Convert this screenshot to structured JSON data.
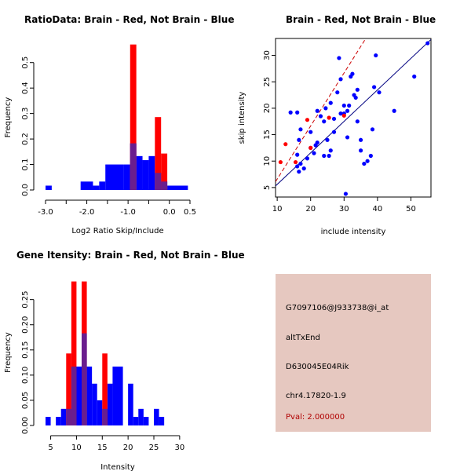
{
  "colors": {
    "red": "#ff0000",
    "blue": "#0000ff",
    "overlap": "#6a1e8e",
    "info_bg": "#e6c8c0",
    "pval_text": "#b00000",
    "red_fit": "#cc0000",
    "blue_fit": "#000080"
  },
  "chart_data": [
    {
      "type": "histogram",
      "title": "RatioData: Brain - Red, Not Brain - Blue",
      "xlabel": "Log2 Ratio Skip/Include",
      "ylabel": "Frequency",
      "xlim": [
        -3.0,
        0.5
      ],
      "ylim": [
        0,
        0.57
      ],
      "xticks": [
        -3.0,
        -2.5,
        -2.0,
        -1.5,
        -1.0,
        -0.5,
        0.0,
        0.5
      ],
      "xtick_labels": [
        "-3.0",
        "",
        "-2.0",
        "",
        "-1.0",
        "",
        "0.0",
        "0.5"
      ],
      "yticks": [
        0.0,
        0.1,
        0.2,
        0.3,
        0.4,
        0.5
      ],
      "ytick_labels": [
        "0.0",
        "0.1",
        "0.2",
        "0.3",
        "0.4",
        "0.5"
      ],
      "series": [
        {
          "name": "Not Brain",
          "color": "blue",
          "bins": [
            {
              "x0": -3.0,
              "x1": -2.85,
              "y": 0.017
            },
            {
              "x0": -2.15,
              "x1": -1.85,
              "y": 0.033
            },
            {
              "x0": -1.85,
              "x1": -1.7,
              "y": 0.017
            },
            {
              "x0": -1.7,
              "x1": -1.55,
              "y": 0.033
            },
            {
              "x0": -1.55,
              "x1": -1.1,
              "y": 0.1
            },
            {
              "x0": -1.1,
              "x1": -0.95,
              "y": 0.1
            },
            {
              "x0": -0.95,
              "x1": -0.8,
              "y": 0.183
            },
            {
              "x0": -0.8,
              "x1": -0.65,
              "y": 0.133
            },
            {
              "x0": -0.65,
              "x1": -0.5,
              "y": 0.117
            },
            {
              "x0": -0.5,
              "x1": -0.35,
              "y": 0.133
            },
            {
              "x0": -0.35,
              "x1": -0.2,
              "y": 0.067
            },
            {
              "x0": -0.2,
              "x1": -0.05,
              "y": 0.033
            },
            {
              "x0": -0.05,
              "x1": 0.45,
              "y": 0.017
            }
          ]
        },
        {
          "name": "Brain",
          "color": "red",
          "bins": [
            {
              "x0": -0.95,
              "x1": -0.8,
              "y": 0.571
            },
            {
              "x0": -0.35,
              "x1": -0.2,
              "y": 0.286
            },
            {
              "x0": -0.2,
              "x1": -0.05,
              "y": 0.143
            }
          ]
        }
      ]
    },
    {
      "type": "scatter",
      "title": "Brain - Red, Not Brain - Blue",
      "xlabel": "include intensity",
      "ylabel": "skip intensity",
      "xlim": [
        9.5,
        56
      ],
      "ylim": [
        3.2,
        33.2
      ],
      "xticks": [
        10,
        20,
        30,
        40,
        50
      ],
      "yticks": [
        5,
        10,
        15,
        20,
        25,
        30
      ],
      "series": [
        {
          "name": "Not Brain",
          "color": "blue",
          "points": [
            [
              16,
              19.2
            ],
            [
              17,
              16
            ],
            [
              16.5,
              14
            ],
            [
              16,
              11.2
            ],
            [
              17,
              9.5
            ],
            [
              16,
              9
            ],
            [
              16.5,
              8
            ],
            [
              18,
              8.6
            ],
            [
              19,
              10.5
            ],
            [
              20,
              12.5
            ],
            [
              21,
              11.5
            ],
            [
              21.5,
              13
            ],
            [
              22,
              19.5
            ],
            [
              23,
              18.5
            ],
            [
              24,
              17.5
            ],
            [
              24.5,
              20
            ],
            [
              25,
              14
            ],
            [
              25.5,
              11
            ],
            [
              26,
              12
            ],
            [
              26,
              21
            ],
            [
              27,
              18
            ],
            [
              28,
              23
            ],
            [
              28.5,
              29.5
            ],
            [
              29,
              25.5
            ],
            [
              29,
              19
            ],
            [
              30,
              20.5
            ],
            [
              30,
              19
            ],
            [
              31,
              19.5
            ],
            [
              31.5,
              20.5
            ],
            [
              32,
              26
            ],
            [
              32.5,
              26.5
            ],
            [
              33,
              22.5
            ],
            [
              33.5,
              22
            ],
            [
              34,
              23.5
            ],
            [
              34,
              17.5
            ],
            [
              35,
              14
            ],
            [
              35,
              12
            ],
            [
              36,
              9.5
            ],
            [
              37,
              10
            ],
            [
              38,
              11
            ],
            [
              38.5,
              16
            ],
            [
              39,
              24
            ],
            [
              39.5,
              30
            ],
            [
              40.5,
              23
            ],
            [
              45,
              19.5
            ],
            [
              51,
              26
            ],
            [
              55,
              32.3
            ],
            [
              30.5,
              3.8
            ],
            [
              14,
              19.2
            ],
            [
              20,
              15.5
            ],
            [
              22,
              13.5
            ],
            [
              27,
              15.5
            ],
            [
              31,
              14.5
            ],
            [
              24,
              11
            ]
          ]
        },
        {
          "name": "Brain",
          "color": "red",
          "points": [
            [
              11,
              9.8
            ],
            [
              12.5,
              13.2
            ],
            [
              15.5,
              9.8
            ],
            [
              19,
              17.8
            ],
            [
              20,
              12.5
            ],
            [
              25.5,
              18.2
            ],
            [
              30,
              18.6
            ]
          ]
        }
      ],
      "fit_lines": [
        {
          "name": "Brain fit",
          "color": "red_fit",
          "dashed": true,
          "x": [
            9.5,
            36.5
          ],
          "y": [
            6.1,
            33.2
          ]
        },
        {
          "name": "Not Brain fit",
          "color": "blue_fit",
          "dashed": false,
          "x": [
            9.5,
            56
          ],
          "y": [
            5.3,
            33.0
          ]
        }
      ]
    },
    {
      "type": "histogram",
      "title": "Gene Itensity: Brain - Red, Not Brain - Blue",
      "xlabel": "Intensity",
      "ylabel": "Frequency",
      "xlim": [
        4,
        32
      ],
      "ylim": [
        0,
        0.29
      ],
      "xticks": [
        5,
        10,
        15,
        20,
        25,
        30
      ],
      "xtick_labels": [
        "5",
        "10",
        "15",
        "20",
        "25",
        "30"
      ],
      "yticks": [
        0.0,
        0.05,
        0.1,
        0.15,
        0.2,
        0.25
      ],
      "ytick_labels": [
        "0.00",
        "0.05",
        "0.10",
        "0.15",
        "0.20",
        "0.25"
      ],
      "series": [
        {
          "name": "Not Brain",
          "color": "blue",
          "bins": [
            {
              "x0": 4,
              "x1": 5,
              "y": 0.017
            },
            {
              "x0": 6,
              "x1": 7,
              "y": 0.017
            },
            {
              "x0": 7,
              "x1": 8,
              "y": 0.033
            },
            {
              "x0": 8,
              "x1": 9,
              "y": 0.033
            },
            {
              "x0": 9,
              "x1": 10,
              "y": 0.117
            },
            {
              "x0": 10,
              "x1": 11,
              "y": 0.117
            },
            {
              "x0": 11,
              "x1": 12,
              "y": 0.183
            },
            {
              "x0": 12,
              "x1": 13,
              "y": 0.117
            },
            {
              "x0": 13,
              "x1": 14,
              "y": 0.083
            },
            {
              "x0": 14,
              "x1": 15,
              "y": 0.05
            },
            {
              "x0": 15,
              "x1": 16,
              "y": 0.033
            },
            {
              "x0": 16,
              "x1": 17,
              "y": 0.083
            },
            {
              "x0": 17,
              "x1": 18,
              "y": 0.117
            },
            {
              "x0": 18,
              "x1": 19,
              "y": 0.117
            },
            {
              "x0": 20,
              "x1": 21,
              "y": 0.083
            },
            {
              "x0": 21,
              "x1": 22,
              "y": 0.017
            },
            {
              "x0": 22,
              "x1": 23,
              "y": 0.033
            },
            {
              "x0": 23,
              "x1": 24,
              "y": 0.017
            },
            {
              "x0": 25,
              "x1": 26,
              "y": 0.033
            },
            {
              "x0": 26,
              "x1": 27,
              "y": 0.017
            }
          ]
        },
        {
          "name": "Brain",
          "color": "red",
          "bins": [
            {
              "x0": 8,
              "x1": 9,
              "y": 0.143
            },
            {
              "x0": 9,
              "x1": 10,
              "y": 0.286
            },
            {
              "x0": 11,
              "x1": 12,
              "y": 0.286
            },
            {
              "x0": 15,
              "x1": 16,
              "y": 0.143
            }
          ]
        }
      ]
    }
  ],
  "info": {
    "probe_id": "G7097106@J933738@i_at",
    "event_type": "altTxEnd",
    "gene": "D630045E04Rik",
    "location": "chr4.17820-1.9",
    "pval": "Pval: 2.000000"
  }
}
